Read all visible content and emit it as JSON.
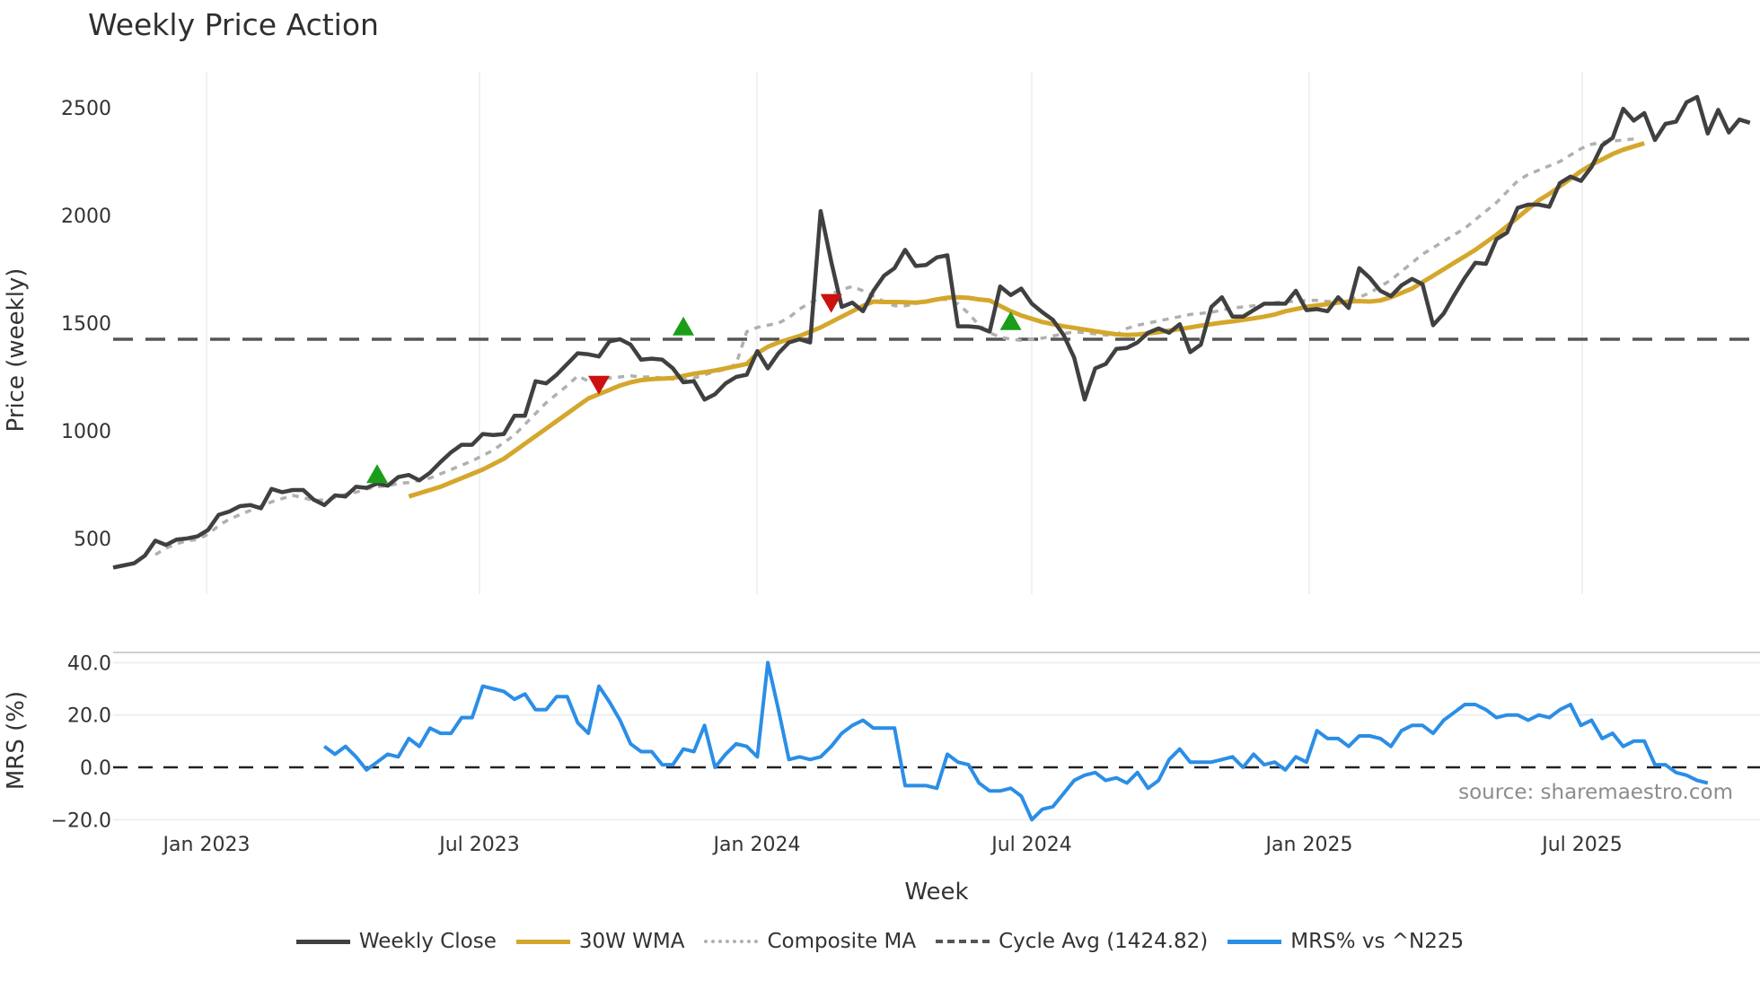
{
  "title": "Weekly Price Action",
  "source": "source: sharemaestro.com",
  "legend": [
    {
      "label": "Weekly Close",
      "color": "#404040",
      "style": "solid"
    },
    {
      "label": "30W WMA",
      "color": "#d4a72c",
      "style": "solid"
    },
    {
      "label": "Composite MA",
      "color": "#b0b0b0",
      "style": "dotted"
    },
    {
      "label": "Cycle Avg (1424.82)",
      "color": "#555555",
      "style": "dashed"
    },
    {
      "label": "MRS% vs ^N225",
      "color": "#2b8ee6",
      "style": "solid"
    }
  ],
  "chart_data": [
    {
      "type": "line",
      "title": "Weekly Price Action",
      "xlabel": "Week",
      "ylabel": "Price (weekly)",
      "ylim": [
        240,
        2650
      ],
      "yticks": [
        500,
        1000,
        1500,
        2000,
        2500
      ],
      "xticks": [
        "Jan 2023",
        "Jul 2023",
        "Jan 2024",
        "Jul 2024",
        "Jan 2025",
        "Jul 2025"
      ],
      "grid": true,
      "legend_position": "bottom",
      "cycle_avg": 1424.82,
      "series": [
        {
          "name": "Weekly Close",
          "values": [
            365,
            375,
            385,
            420,
            490,
            470,
            495,
            500,
            510,
            540,
            610,
            625,
            650,
            655,
            640,
            730,
            715,
            725,
            725,
            680,
            655,
            700,
            695,
            740,
            735,
            755,
            745,
            785,
            795,
            770,
            805,
            855,
            900,
            935,
            935,
            985,
            980,
            985,
            1070,
            1070,
            1230,
            1220,
            1260,
            1310,
            1360,
            1355,
            1345,
            1415,
            1425,
            1400,
            1330,
            1335,
            1330,
            1290,
            1225,
            1230,
            1145,
            1170,
            1220,
            1250,
            1260,
            1370,
            1290,
            1360,
            1410,
            1425,
            1410,
            2020,
            1785,
            1575,
            1595,
            1555,
            1650,
            1720,
            1755,
            1840,
            1765,
            1770,
            1805,
            1815,
            1485,
            1485,
            1480,
            1460,
            1670,
            1630,
            1660,
            1590,
            1550,
            1515,
            1445,
            1340,
            1145,
            1290,
            1310,
            1380,
            1385,
            1410,
            1455,
            1475,
            1455,
            1495,
            1365,
            1400,
            1575,
            1620,
            1530,
            1530,
            1560,
            1590,
            1590,
            1590,
            1650,
            1560,
            1565,
            1555,
            1620,
            1570,
            1755,
            1710,
            1650,
            1625,
            1675,
            1705,
            1680,
            1490,
            1545,
            1630,
            1710,
            1780,
            1775,
            1890,
            1920,
            2035,
            2050,
            2050,
            2040,
            2150,
            2180,
            2160,
            2225,
            2325,
            2360,
            2495,
            2440,
            2475,
            2350,
            2425,
            2435,
            2525,
            2550,
            2380,
            2490,
            2385,
            2445,
            2430
          ]
        },
        {
          "name": "30W WMA",
          "start_index": 28,
          "values": [
            695,
            710,
            725,
            740,
            760,
            780,
            800,
            820,
            845,
            870,
            905,
            940,
            975,
            1010,
            1045,
            1080,
            1115,
            1150,
            1170,
            1190,
            1210,
            1225,
            1235,
            1240,
            1242,
            1245,
            1255,
            1265,
            1272,
            1280,
            1290,
            1300,
            1310,
            1360,
            1390,
            1410,
            1425,
            1440,
            1460,
            1480,
            1505,
            1530,
            1555,
            1580,
            1600,
            1598,
            1598,
            1597,
            1595,
            1600,
            1610,
            1618,
            1620,
            1617,
            1610,
            1605,
            1580,
            1555,
            1535,
            1520,
            1505,
            1495,
            1485,
            1478,
            1470,
            1462,
            1455,
            1448,
            1445,
            1447,
            1452,
            1458,
            1465,
            1472,
            1480,
            1488,
            1495,
            1502,
            1508,
            1515,
            1522,
            1530,
            1540,
            1555,
            1565,
            1575,
            1582,
            1588,
            1595,
            1600,
            1602,
            1600,
            1605,
            1620,
            1640,
            1660,
            1690,
            1720,
            1750,
            1780,
            1810,
            1840,
            1875,
            1910,
            1950,
            1990,
            2030,
            2070,
            2100,
            2135,
            2170,
            2205,
            2235,
            2260,
            2285,
            2305,
            2320,
            2335
          ]
        },
        {
          "name": "Composite MA",
          "start_index": 4,
          "values": [
            425,
            455,
            475,
            490,
            495,
            520,
            560,
            590,
            610,
            630,
            650,
            670,
            685,
            700,
            690,
            675,
            680,
            690,
            705,
            715,
            730,
            740,
            745,
            755,
            760,
            770,
            780,
            800,
            820,
            840,
            860,
            885,
            910,
            945,
            980,
            1030,
            1080,
            1130,
            1170,
            1210,
            1255,
            1230,
            1240,
            1245,
            1250,
            1255,
            1250,
            1250,
            1245,
            1240,
            1238,
            1245,
            1260,
            1275,
            1285,
            1310,
            1460,
            1480,
            1490,
            1500,
            1525,
            1565,
            1595,
            1615,
            1635,
            1655,
            1670,
            1650,
            1625,
            1600,
            1580,
            1580,
            1590,
            1600,
            1610,
            1610,
            1590,
            1545,
            1490,
            1455,
            1435,
            1425,
            1420,
            1425,
            1430,
            1440,
            1450,
            1460,
            1455,
            1450,
            1445,
            1445,
            1475,
            1490,
            1500,
            1510,
            1520,
            1530,
            1540,
            1545,
            1550,
            1560,
            1570,
            1575,
            1580,
            1590,
            1595,
            1600,
            1600,
            1605,
            1605,
            1600,
            1605,
            1610,
            1620,
            1640,
            1670,
            1700,
            1740,
            1780,
            1820,
            1850,
            1880,
            1910,
            1940,
            1980,
            2020,
            2060,
            2110,
            2160,
            2190,
            2210,
            2230,
            2250,
            2280,
            2310,
            2330,
            2340,
            2345,
            2350,
            2355
          ]
        },
        {
          "name": "Cycle Avg (1424.82)",
          "values": [
            1424.82
          ]
        }
      ],
      "markers": [
        {
          "type": "buy",
          "color": "#1a9e1a",
          "index": 25,
          "value": 795
        },
        {
          "type": "sell",
          "color": "#cc1111",
          "index": 46,
          "value": 1205
        },
        {
          "type": "buy",
          "color": "#1a9e1a",
          "index": 54,
          "value": 1480
        },
        {
          "type": "sell",
          "color": "#cc1111",
          "index": 68,
          "value": 1585
        },
        {
          "type": "buy",
          "color": "#1a9e1a",
          "index": 85,
          "value": 1505
        }
      ]
    },
    {
      "type": "line",
      "xlabel": "Week",
      "ylabel": "MRS (%)",
      "ylim": [
        -22,
        44
      ],
      "yticks": [
        "40.0",
        "20.0",
        "0.0",
        "−20.0"
      ],
      "ytick_values": [
        40,
        20,
        0,
        -20
      ],
      "grid": true,
      "series": [
        {
          "name": "MRS% vs ^N225",
          "start_index": 20,
          "values": [
            8,
            5,
            8,
            4,
            -1,
            2,
            5,
            4,
            11,
            8,
            15,
            13,
            13,
            19,
            19,
            31,
            30,
            29,
            26,
            28,
            22,
            22,
            27,
            27,
            17,
            13,
            31,
            25,
            18,
            9,
            6,
            6,
            1,
            1,
            7,
            6,
            16,
            0,
            5,
            9,
            8,
            4,
            40,
            22,
            3,
            4,
            3,
            4,
            8,
            13,
            16,
            18,
            15,
            15,
            15,
            -7,
            -7,
            -7,
            -8,
            5,
            2,
            1,
            -6,
            -9,
            -9,
            -8,
            -11,
            -20,
            -16,
            -15,
            -10,
            -5,
            -3,
            -2,
            -5,
            -4,
            -6,
            -2,
            -8,
            -5,
            3,
            7,
            2,
            2,
            2,
            3,
            4,
            0,
            5,
            1,
            2,
            -1,
            4,
            2,
            14,
            11,
            11,
            8,
            12,
            12,
            11,
            8,
            14,
            16,
            16,
            13,
            18,
            21,
            24,
            24,
            22,
            19,
            20,
            20,
            18,
            20,
            19,
            22,
            24,
            16,
            18,
            11,
            13,
            8,
            10,
            10,
            1,
            1,
            -2,
            -3,
            -5,
            -6
          ]
        }
      ]
    }
  ]
}
